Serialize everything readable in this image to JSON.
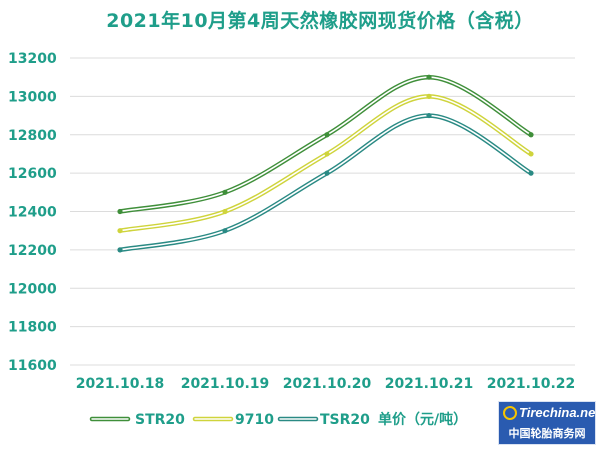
{
  "chart_data": {
    "type": "line",
    "title": "2021年10月第4周天然橡胶网现货价格（含税）",
    "categories": [
      "2021.10.18",
      "2021.10.19",
      "2021.10.20",
      "2021.10.21",
      "2021.10.22"
    ],
    "series": [
      {
        "name": "STR20",
        "values": [
          12400,
          12500,
          12800,
          13100,
          12800
        ],
        "color": "#3f8f3a"
      },
      {
        "name": "9710",
        "values": [
          12300,
          12400,
          12700,
          13000,
          12700
        ],
        "color": "#cfd43c"
      },
      {
        "name": "TSR20",
        "values": [
          12200,
          12300,
          12600,
          12900,
          12600
        ],
        "color": "#2a8a84"
      }
    ],
    "unit": "单价（元/吨）",
    "ylim": [
      11600,
      13200
    ],
    "yticks": [
      11600,
      11800,
      12000,
      12200,
      12400,
      12600,
      12800,
      13000,
      13200
    ],
    "grid": true,
    "legend": "bottom",
    "text_color": "#1f9e8a"
  },
  "logo": {
    "en": "Tirechina.net",
    "cn": "中国轮胎商务网"
  }
}
